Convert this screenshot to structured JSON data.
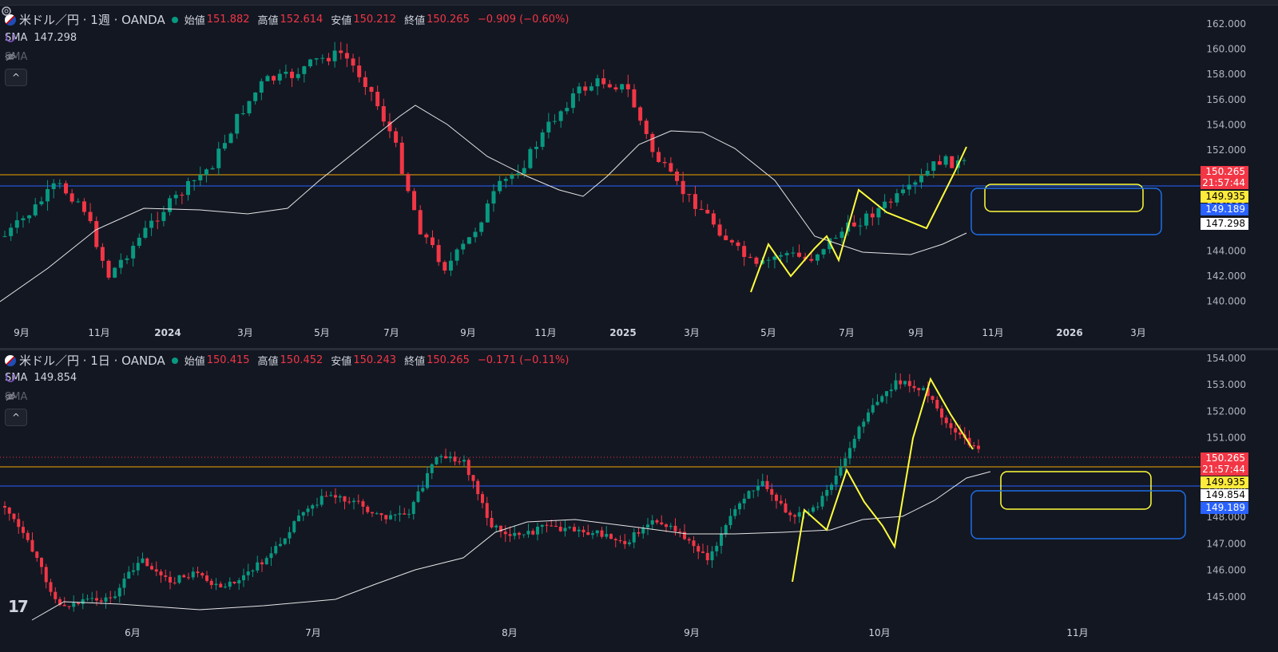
{
  "colors": {
    "background": "#131722",
    "up": "#089981",
    "down": "#f23645",
    "sma_line": "#e6e6e6",
    "annot_yellow": "#ffff3b",
    "box_blue": "#1e6fe8",
    "line_orange": "#f0a500",
    "line_blue": "#2962ff"
  },
  "pane1": {
    "symbol": "米ドル／円 · 1週 · OANDA",
    "ohlc": [
      {
        "k": "始値",
        "v": "151.882"
      },
      {
        "k": "高値",
        "v": "152.614"
      },
      {
        "k": "安値",
        "v": "150.212"
      },
      {
        "k": "終値",
        "v": "150.265"
      }
    ],
    "change": "−0.909 (−0.60%)",
    "sma_label": "SMA",
    "sma_value": "147.298",
    "sma2_label": "SMA",
    "collapse_icon": "^",
    "price_axis": [
      "162.000",
      "160.000",
      "158.000",
      "156.000",
      "154.000",
      "152.000",
      "150.000",
      "148.000",
      "146.000",
      "144.000",
      "142.000",
      "140.000"
    ],
    "time_axis": [
      "9月",
      "11月",
      "2024",
      "3月",
      "5月",
      "7月",
      "9月",
      "11月",
      "2025",
      "3月",
      "5月",
      "7月",
      "9月",
      "11月",
      "2026",
      "3月"
    ],
    "tags": {
      "close": "150.265",
      "countdown": "21:57:44",
      "yellow": "149.935",
      "blue": "149.189",
      "sma": "147.298"
    }
  },
  "pane2": {
    "symbol": "米ドル／円 · 1日 · OANDA",
    "ohlc": [
      {
        "k": "始値",
        "v": "150.415"
      },
      {
        "k": "高値",
        "v": "150.452"
      },
      {
        "k": "安値",
        "v": "150.243"
      },
      {
        "k": "終値",
        "v": "150.265"
      }
    ],
    "change": "−0.171 (−0.11%)",
    "sma_label": "SMA",
    "sma_value": "149.854",
    "sma2_label": "SMA",
    "collapse_icon": "^",
    "price_axis": [
      "154.000",
      "153.000",
      "152.000",
      "151.000",
      "150.000",
      "149.000",
      "148.000",
      "147.000",
      "146.000",
      "145.000"
    ],
    "time_axis": [
      "6月",
      "7月",
      "8月",
      "9月",
      "10月",
      "11月"
    ],
    "tags": {
      "close": "150.265",
      "countdown": "21:57:44",
      "yellow": "149.935",
      "sma": "149.854",
      "blue": "149.189"
    }
  },
  "logo_text": "17"
}
